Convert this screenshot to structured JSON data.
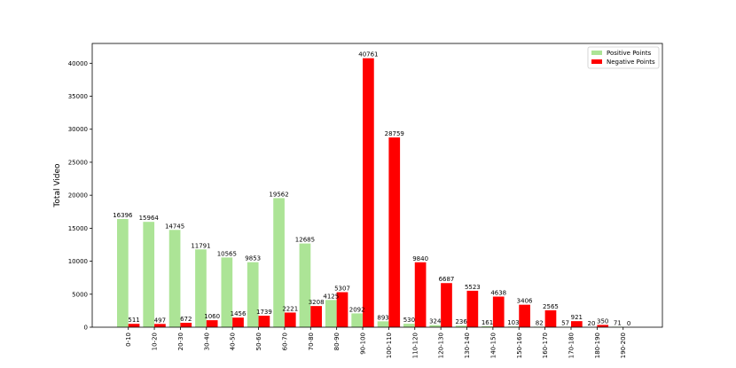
{
  "chart_data": {
    "type": "bar",
    "title": "",
    "xlabel": "",
    "ylabel": "Total Video",
    "ylim": [
      0,
      43000
    ],
    "yticks": [
      0,
      5000,
      10000,
      15000,
      20000,
      25000,
      30000,
      35000,
      40000
    ],
    "grid": false,
    "legend_position": "top-right",
    "categories": [
      "0-10",
      "10-20",
      "20-30",
      "30-40",
      "40-50",
      "50-60",
      "60-70",
      "70-80",
      "80-90",
      "90-100",
      "100-110",
      "110-120",
      "120-130",
      "130-140",
      "140-150",
      "150-160",
      "160-170",
      "170-180",
      "180-190",
      "190-200"
    ],
    "series": [
      {
        "name": "Positive Points",
        "color": "#ace496",
        "values": [
          16396,
          15964,
          14745,
          11791,
          10565,
          9853,
          19562,
          12685,
          4125,
          2092,
          893,
          530,
          324,
          236,
          161,
          103,
          82,
          57,
          20,
          71
        ]
      },
      {
        "name": "Negative Points",
        "color": "#ff0000",
        "values": [
          511,
          497,
          672,
          1060,
          1456,
          1739,
          2221,
          3208,
          5307,
          40761,
          28759,
          9840,
          6687,
          5523,
          4638,
          3406,
          2565,
          921,
          350,
          0
        ]
      }
    ]
  }
}
